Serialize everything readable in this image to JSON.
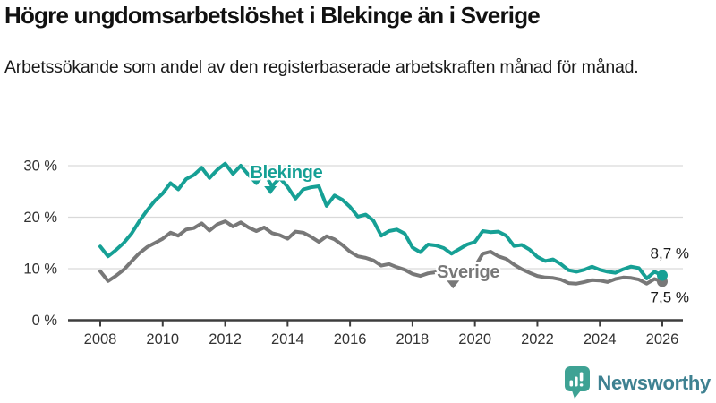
{
  "chart_data": {
    "type": "line",
    "title": "Högre ungdomsarbetslöshet i Blekinge än i Sverige",
    "subtitle": "Arbetssökande som andel av den registerbaserade arbetskraften månad för månad.",
    "grid": true,
    "legend_position": "inline-annotations",
    "x_axis": {
      "unit": "year",
      "start": 2008,
      "step": 0.25,
      "range": [
        2007.0,
        2026.6
      ],
      "ticks": [
        2008,
        2010,
        2012,
        2014,
        2016,
        2018,
        2020,
        2022,
        2024,
        2026
      ]
    },
    "y_axis": {
      "unit": "%",
      "range": [
        0,
        30
      ],
      "ticks": [
        0,
        10,
        20,
        30
      ],
      "tick_labels": [
        "0 %",
        "10 %",
        "20 %",
        "30 %"
      ]
    },
    "series": [
      {
        "name": "Blekinge",
        "color": "#16a095",
        "end_label": "8,7 %",
        "end_value": 8.7,
        "values": [
          14.3,
          12.4,
          13.6,
          15.0,
          16.8,
          19.2,
          21.3,
          23.2,
          24.6,
          26.6,
          25.4,
          27.4,
          28.2,
          29.6,
          27.6,
          29.2,
          30.4,
          28.4,
          30.0,
          28.2,
          26.6,
          28.6,
          26.0,
          27.6,
          25.9,
          23.6,
          25.4,
          25.8,
          26.0,
          22.2,
          24.2,
          23.4,
          22.0,
          20.1,
          20.5,
          19.3,
          16.4,
          17.3,
          17.6,
          16.8,
          14.1,
          13.2,
          14.7,
          14.5,
          14.0,
          12.9,
          13.8,
          14.7,
          15.2,
          17.3,
          17.1,
          17.2,
          16.4,
          14.4,
          14.6,
          13.7,
          12.3,
          11.5,
          11.8,
          10.9,
          9.7,
          9.4,
          9.8,
          10.4,
          9.8,
          9.4,
          9.2,
          9.9,
          10.4,
          10.1,
          8.1,
          9.4,
          8.7
        ]
      },
      {
        "name": "Sverige",
        "color": "#787878",
        "end_label": "7,5 %",
        "end_value": 7.5,
        "values": [
          9.5,
          7.6,
          8.6,
          9.8,
          11.4,
          13.0,
          14.2,
          15.0,
          15.8,
          17.0,
          16.4,
          17.6,
          17.9,
          18.8,
          17.4,
          18.6,
          19.2,
          18.2,
          19.0,
          18.0,
          17.3,
          18.0,
          16.9,
          16.5,
          15.8,
          17.2,
          17.0,
          16.2,
          15.2,
          16.3,
          15.7,
          14.6,
          13.3,
          12.4,
          12.1,
          11.6,
          10.6,
          10.9,
          10.3,
          9.8,
          9.0,
          8.6,
          9.1,
          9.3,
          8.8,
          8.6,
          9.0,
          9.6,
          10.4,
          12.9,
          13.3,
          12.4,
          11.9,
          10.8,
          9.9,
          9.2,
          8.6,
          8.3,
          8.2,
          7.9,
          7.2,
          7.1,
          7.4,
          7.8,
          7.7,
          7.4,
          8.0,
          8.3,
          8.2,
          7.9,
          7.1,
          8.0,
          7.5
        ]
      }
    ],
    "annotations": [
      {
        "text": "Blekinge",
        "color": "#16a095",
        "x_year": 2012.8,
        "y_pct": 27.6,
        "caret_x_year": 2013.45,
        "caret_y_pct": 26.0
      },
      {
        "text": "Sverige",
        "color": "#787878",
        "x_year": 2018.78,
        "y_pct": 8.3,
        "caret_x_year": 2019.3,
        "caret_y_pct": 7.7
      }
    ],
    "colors": {
      "grid": "#d9d9d9",
      "axis": "#3d3d3d",
      "tick_text": "#333333",
      "value_label_text": "#1a1a1a"
    }
  },
  "footer": {
    "brand": "Newsworthy",
    "logo_color": "#3ea294",
    "text_color": "#3e8191",
    "logo_icon": "bar-chart-exclamation-bubble"
  }
}
